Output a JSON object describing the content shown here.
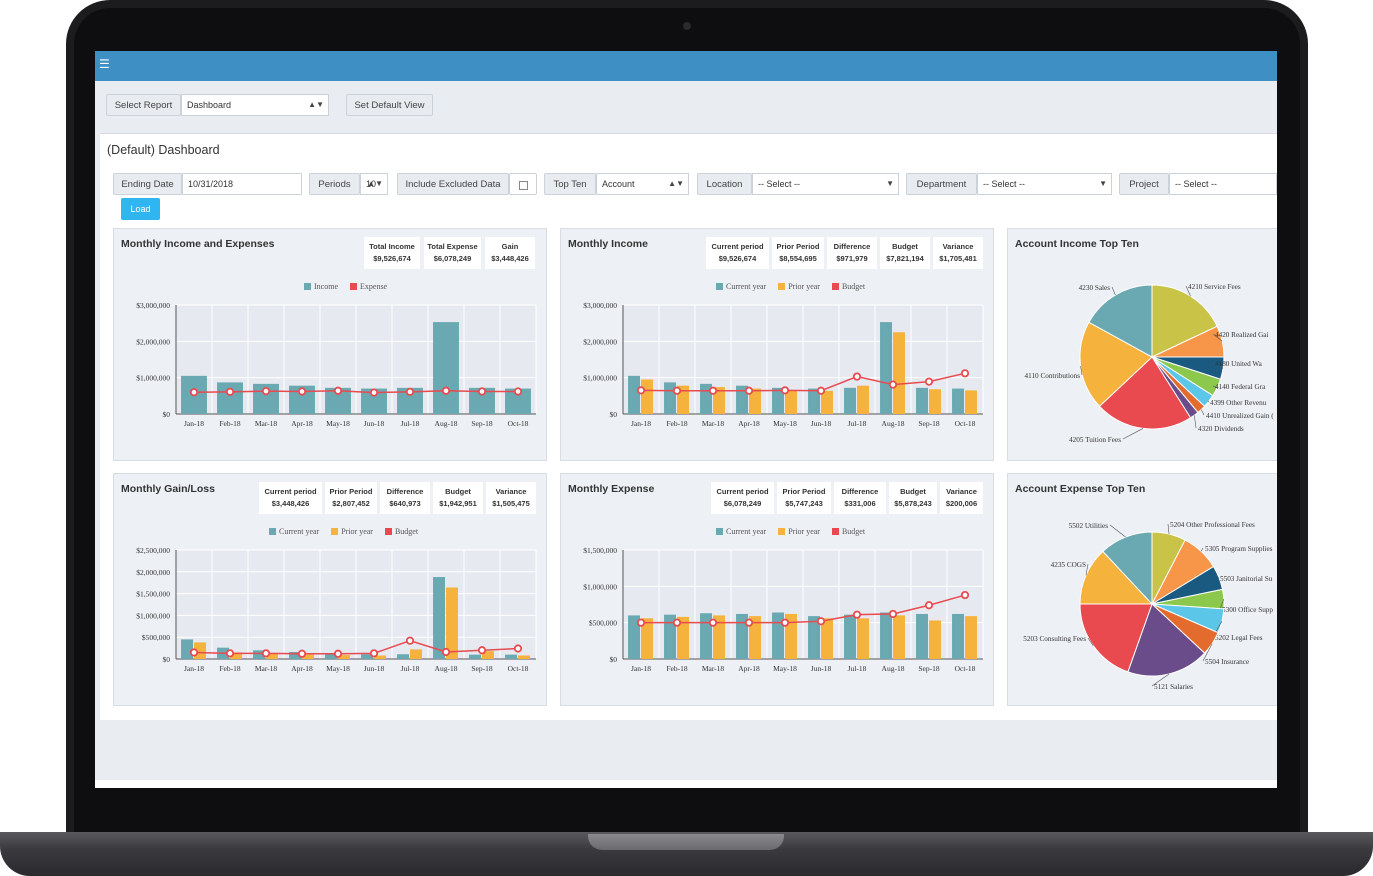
{
  "colors": {
    "accent": "#3d8fc4",
    "income": "#6aa9b2",
    "expense": "#e84a4f",
    "prior": "#f5b23c",
    "budget": "#e84a4f",
    "load": "#2fb5f0"
  },
  "toolbar": {
    "select_report_label": "Select Report",
    "report_value": "Dashboard",
    "set_default_label": "Set Default View"
  },
  "dashboard_title": "(Default) Dashboard",
  "filters": {
    "ending_date_label": "Ending Date",
    "ending_date_value": "10/31/2018",
    "periods_label": "Periods",
    "periods_value": "10",
    "include_excluded_label": "Include Excluded Data",
    "top_ten_label": "Top Ten",
    "top_ten_value": "Account",
    "location_label": "Location",
    "location_value": "-- Select --",
    "department_label": "Department",
    "department_value": "-- Select --",
    "project_label": "Project",
    "project_value": "-- Select --",
    "load_label": "Load"
  },
  "chart_data": [
    {
      "type": "bar",
      "title": "Monthly Income and Expenses",
      "stats": [
        {
          "label": "Total Income",
          "value": "$9,526,674"
        },
        {
          "label": "Total Expense",
          "value": "$6,078,249"
        },
        {
          "label": "Gain",
          "value": "$3,448,426"
        }
      ],
      "categories": [
        "Jan-18",
        "Feb-18",
        "Mar-18",
        "Apr-18",
        "May-18",
        "Jun-18",
        "Jul-18",
        "Aug-18",
        "Sep-18",
        "Oct-18"
      ],
      "series": [
        {
          "name": "Income",
          "kind": "bar",
          "values": [
            1050000,
            870000,
            830000,
            780000,
            720000,
            700000,
            720000,
            2530000,
            720000,
            700000
          ]
        },
        {
          "name": "Expense",
          "kind": "line",
          "values": [
            600000,
            610000,
            630000,
            620000,
            640000,
            590000,
            610000,
            640000,
            620000,
            620000
          ]
        }
      ],
      "yticks": [
        "$0",
        "$1,000,000",
        "$2,000,000",
        "$3,000,000"
      ],
      "ylim": [
        0,
        3000000
      ]
    },
    {
      "type": "bar",
      "title": "Monthly Income",
      "stats": [
        {
          "label": "Current period",
          "value": "$9,526,674"
        },
        {
          "label": "Prior Period",
          "value": "$8,554,695"
        },
        {
          "label": "Difference",
          "value": "$971,979"
        },
        {
          "label": "Budget",
          "value": "$7,821,194"
        },
        {
          "label": "Variance",
          "value": "$1,705,481"
        }
      ],
      "categories": [
        "Jan-18",
        "Feb-18",
        "Mar-18",
        "Apr-18",
        "May-18",
        "Jun-18",
        "Jul-18",
        "Aug-18",
        "Sep-18",
        "Oct-18"
      ],
      "series": [
        {
          "name": "Current year",
          "kind": "bar",
          "values": [
            1050000,
            870000,
            830000,
            780000,
            720000,
            700000,
            720000,
            2530000,
            720000,
            700000
          ]
        },
        {
          "name": "Prior year",
          "kind": "bar",
          "values": [
            950000,
            780000,
            740000,
            700000,
            650000,
            640000,
            780000,
            2250000,
            680000,
            650000
          ]
        },
        {
          "name": "Budget",
          "kind": "line",
          "values": [
            650000,
            640000,
            640000,
            640000,
            650000,
            640000,
            1030000,
            810000,
            890000,
            1120000
          ]
        }
      ],
      "yticks": [
        "$0",
        "$1,000,000",
        "$2,000,000",
        "$3,000,000"
      ],
      "ylim": [
        0,
        3000000
      ]
    },
    {
      "type": "pie",
      "title": "Account Income Top Ten",
      "labels": [
        "4210 Service Fees",
        "4420 Realized Gai",
        "4180 United Wa",
        "4140 Federal Gra",
        "4399 Other Revenu",
        "4410 Unrealized Gain (",
        "4320 Dividends",
        "4205 Tuition Fees",
        "4110 Contributions",
        "4230 Sales"
      ],
      "values": [
        18,
        7,
        5,
        4,
        3,
        2,
        2,
        22,
        20,
        17
      ]
    },
    {
      "type": "bar",
      "title": "Monthly Gain/Loss",
      "stats": [
        {
          "label": "Current period",
          "value": "$3,448,426"
        },
        {
          "label": "Prior Period",
          "value": "$2,807,452"
        },
        {
          "label": "Difference",
          "value": "$640,973"
        },
        {
          "label": "Budget",
          "value": "$1,942,951"
        },
        {
          "label": "Variance",
          "value": "$1,505,475"
        }
      ],
      "categories": [
        "Jan-18",
        "Feb-18",
        "Mar-18",
        "Apr-18",
        "May-18",
        "Jun-18",
        "Jul-18",
        "Aug-18",
        "Sep-18",
        "Oct-18"
      ],
      "series": [
        {
          "name": "Current year",
          "kind": "bar",
          "values": [
            450000,
            260000,
            200000,
            160000,
            120000,
            110000,
            110000,
            1880000,
            100000,
            100000
          ]
        },
        {
          "name": "Prior year",
          "kind": "bar",
          "values": [
            380000,
            150000,
            120000,
            100000,
            90000,
            80000,
            220000,
            1640000,
            180000,
            80000
          ]
        },
        {
          "name": "Budget",
          "kind": "line",
          "values": [
            150000,
            130000,
            130000,
            120000,
            120000,
            130000,
            420000,
            160000,
            200000,
            240000
          ]
        }
      ],
      "yticks": [
        "$0",
        "$500,000",
        "$1,000,000",
        "$1,500,000",
        "$2,000,000",
        "$2,500,000"
      ],
      "ylim": [
        0,
        2500000
      ]
    },
    {
      "type": "bar",
      "title": "Monthly Expense",
      "stats": [
        {
          "label": "Current period",
          "value": "$6,078,249"
        },
        {
          "label": "Prior Period",
          "value": "$5,747,243"
        },
        {
          "label": "Difference",
          "value": "$331,006"
        },
        {
          "label": "Budget",
          "value": "$5,878,243"
        },
        {
          "label": "Variance",
          "value": "$200,006"
        }
      ],
      "categories": [
        "Jan-18",
        "Feb-18",
        "Mar-18",
        "Apr-18",
        "May-18",
        "Jun-18",
        "Jul-18",
        "Aug-18",
        "Sep-18",
        "Oct-18"
      ],
      "series": [
        {
          "name": "Current year",
          "kind": "bar",
          "values": [
            600000,
            610000,
            630000,
            620000,
            640000,
            590000,
            610000,
            640000,
            620000,
            620000
          ]
        },
        {
          "name": "Prior year",
          "kind": "bar",
          "values": [
            560000,
            580000,
            600000,
            590000,
            620000,
            560000,
            560000,
            600000,
            530000,
            590000
          ]
        },
        {
          "name": "Budget",
          "kind": "line",
          "values": [
            500000,
            500000,
            500000,
            500000,
            500000,
            520000,
            610000,
            620000,
            740000,
            880000
          ]
        }
      ],
      "yticks": [
        "$0",
        "$500,000",
        "$1,000,000",
        "$1,500,000"
      ],
      "ylim": [
        0,
        1500000
      ]
    },
    {
      "type": "pie",
      "title": "Account Expense Top Ten",
      "labels": [
        "5204 Other Professional Fees",
        "5305 Program Supplies",
        "5503 Janitorial Su",
        "5300 Office Supp",
        "5202 Legal Fees",
        "5504 Insurance",
        "5121 Salaries",
        "5203 Consulting Fees",
        "4235 COGS",
        "5502 Utilities"
      ],
      "values": [
        7,
        8,
        5,
        4,
        5,
        5,
        17,
        18,
        12,
        11
      ]
    }
  ]
}
